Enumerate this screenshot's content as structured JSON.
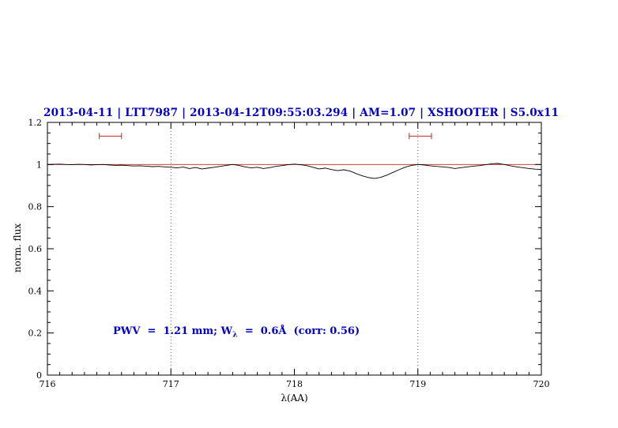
{
  "page": {
    "background": "#ffffff"
  },
  "title": {
    "text": "2013-04-11 | LTT7987 | 2013-04-12T09:55:03.294 | AM=1.07 | XSHOOTER | S5.0x11",
    "color": "#0000cc"
  },
  "annotation": {
    "part1": "PWV  =  1.21 mm; W",
    "sub": "λ",
    "part2": "  =  0.6Å  (corr: 0.56)",
    "color": "#0000cc"
  },
  "axes": {
    "xlabel": "λ(AA)",
    "ylabel": "norm. flux"
  },
  "colors": {
    "spectrum": "#000000",
    "continuum": "#cc2222",
    "marker": "#cc2222",
    "dotted_line": "#444444",
    "frame": "#000000"
  },
  "chart_data": {
    "type": "line",
    "title": "2013-04-11 | LTT7987 | 2013-04-12T09:55:03.294 | AM=1.07 | XSHOOTER | S5.0x11",
    "xlabel": "λ(AA)",
    "ylabel": "norm. flux",
    "xlim": [
      716,
      720
    ],
    "ylim": [
      0,
      1.2
    ],
    "grid": false,
    "x_major_ticks": [
      716,
      717,
      718,
      719,
      720
    ],
    "x_tick_labels": [
      "716",
      "717",
      "718",
      "719",
      "720"
    ],
    "y_major_ticks": [
      0,
      0.2,
      0.4,
      0.6,
      0.8,
      1,
      1.2
    ],
    "y_tick_labels": [
      "0",
      "0.2",
      "0.4",
      "0.6",
      "0.8",
      "1",
      "1.2"
    ],
    "x_minor_step": 0.1,
    "y_minor_step": 0.05,
    "dotted_lines_x": [
      717,
      719
    ],
    "continuum": {
      "y": 1.0
    },
    "markers": [
      {
        "x1": 716.42,
        "x2": 716.6,
        "y": 1.135
      },
      {
        "x1": 718.93,
        "x2": 719.11,
        "y": 1.135
      }
    ],
    "series": [
      {
        "name": "spectrum",
        "x": [
          716.0,
          716.05,
          716.1,
          716.15,
          716.2,
          716.25,
          716.3,
          716.35,
          716.4,
          716.45,
          716.5,
          716.55,
          716.6,
          716.65,
          716.7,
          716.75,
          716.8,
          716.85,
          716.9,
          716.95,
          717.0,
          717.05,
          717.1,
          717.15,
          717.2,
          717.25,
          717.3,
          717.35,
          717.4,
          717.45,
          717.5,
          717.55,
          717.6,
          717.65,
          717.7,
          717.75,
          717.8,
          717.85,
          717.9,
          717.95,
          718.0,
          718.05,
          718.1,
          718.15,
          718.2,
          718.25,
          718.3,
          718.35,
          718.4,
          718.45,
          718.5,
          718.55,
          718.6,
          718.65,
          718.7,
          718.75,
          718.8,
          718.85,
          718.9,
          718.95,
          719.0,
          719.05,
          719.1,
          719.15,
          719.2,
          719.25,
          719.3,
          719.35,
          719.4,
          719.45,
          719.5,
          719.55,
          719.6,
          719.65,
          719.7,
          719.75,
          719.8,
          719.85,
          719.9,
          719.95,
          720.0
        ],
        "y": [
          1.0,
          1.001,
          1.002,
          1.0,
          0.999,
          1.001,
          1.0,
          0.998,
          0.999,
          1.0,
          0.998,
          0.996,
          0.997,
          0.995,
          0.993,
          0.994,
          0.992,
          0.99,
          0.991,
          0.989,
          0.987,
          0.984,
          0.988,
          0.981,
          0.986,
          0.979,
          0.983,
          0.987,
          0.991,
          0.996,
          1.0,
          0.996,
          0.989,
          0.984,
          0.987,
          0.981,
          0.985,
          0.991,
          0.995,
          0.999,
          1.002,
          0.999,
          0.995,
          0.987,
          0.979,
          0.983,
          0.976,
          0.971,
          0.975,
          0.969,
          0.957,
          0.946,
          0.938,
          0.934,
          0.939,
          0.95,
          0.963,
          0.976,
          0.988,
          0.996,
          1.0,
          0.998,
          0.994,
          0.991,
          0.989,
          0.986,
          0.981,
          0.985,
          0.989,
          0.992,
          0.995,
          0.999,
          1.004,
          1.005,
          1.0,
          0.994,
          0.989,
          0.985,
          0.981,
          0.978,
          0.976
        ]
      }
    ]
  }
}
